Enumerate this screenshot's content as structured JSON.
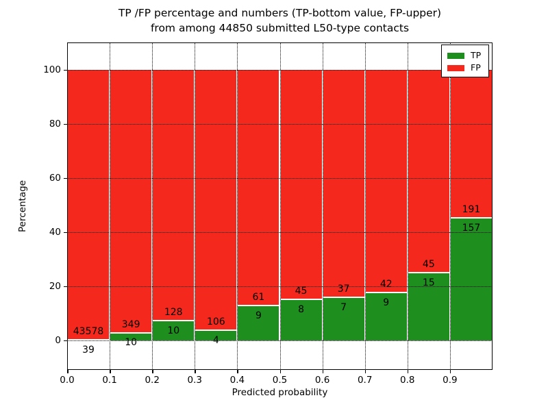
{
  "figure": {
    "title_line1": "TP /FP percentage and numbers (TP-bottom value, FP-upper)",
    "title_line2": "from among 44850 submitted L50-type contacts",
    "xlabel": "Predicted probability",
    "ylabel": "Percentage"
  },
  "legend": {
    "position": "upper right",
    "items": [
      {
        "label": "TP",
        "color": "#1e8e1e"
      },
      {
        "label": "FP",
        "color": "#f4281c"
      }
    ]
  },
  "chart_data": {
    "type": "bar",
    "stacked": true,
    "normalized_to_percent": true,
    "title": "TP /FP percentage and numbers (TP-bottom value, FP-upper) from among 44850 submitted L50-type contacts",
    "xlabel": "Predicted probability",
    "ylabel": "Percentage",
    "grid": "dotted",
    "xlim": [
      0.0,
      1.0
    ],
    "ylim": [
      -11,
      110
    ],
    "bin_width": 0.1,
    "bins_start": [
      0.0,
      0.1,
      0.2,
      0.3,
      0.4,
      0.5,
      0.6,
      0.7,
      0.8,
      0.9
    ],
    "x_tick_labels": [
      "0.0",
      "0.1",
      "0.2",
      "0.3",
      "0.4",
      "0.5",
      "0.6",
      "0.7",
      "0.8",
      "0.9"
    ],
    "y_tick_values": [
      0,
      20,
      40,
      60,
      80,
      100
    ],
    "total_submitted_contacts": 44850,
    "series": [
      {
        "name": "TP",
        "color": "#1e8e1e",
        "counts": [
          39,
          10,
          10,
          4,
          9,
          8,
          7,
          9,
          15,
          157
        ],
        "percent": [
          0.09,
          2.79,
          7.25,
          3.64,
          12.86,
          15.09,
          15.91,
          17.65,
          25.0,
          45.11
        ]
      },
      {
        "name": "FP",
        "color": "#f4281c",
        "counts": [
          43578,
          349,
          128,
          106,
          61,
          45,
          37,
          42,
          45,
          191
        ],
        "percent": [
          99.91,
          97.21,
          92.75,
          96.36,
          87.14,
          84.91,
          84.09,
          82.35,
          75.0,
          54.89
        ]
      }
    ]
  }
}
